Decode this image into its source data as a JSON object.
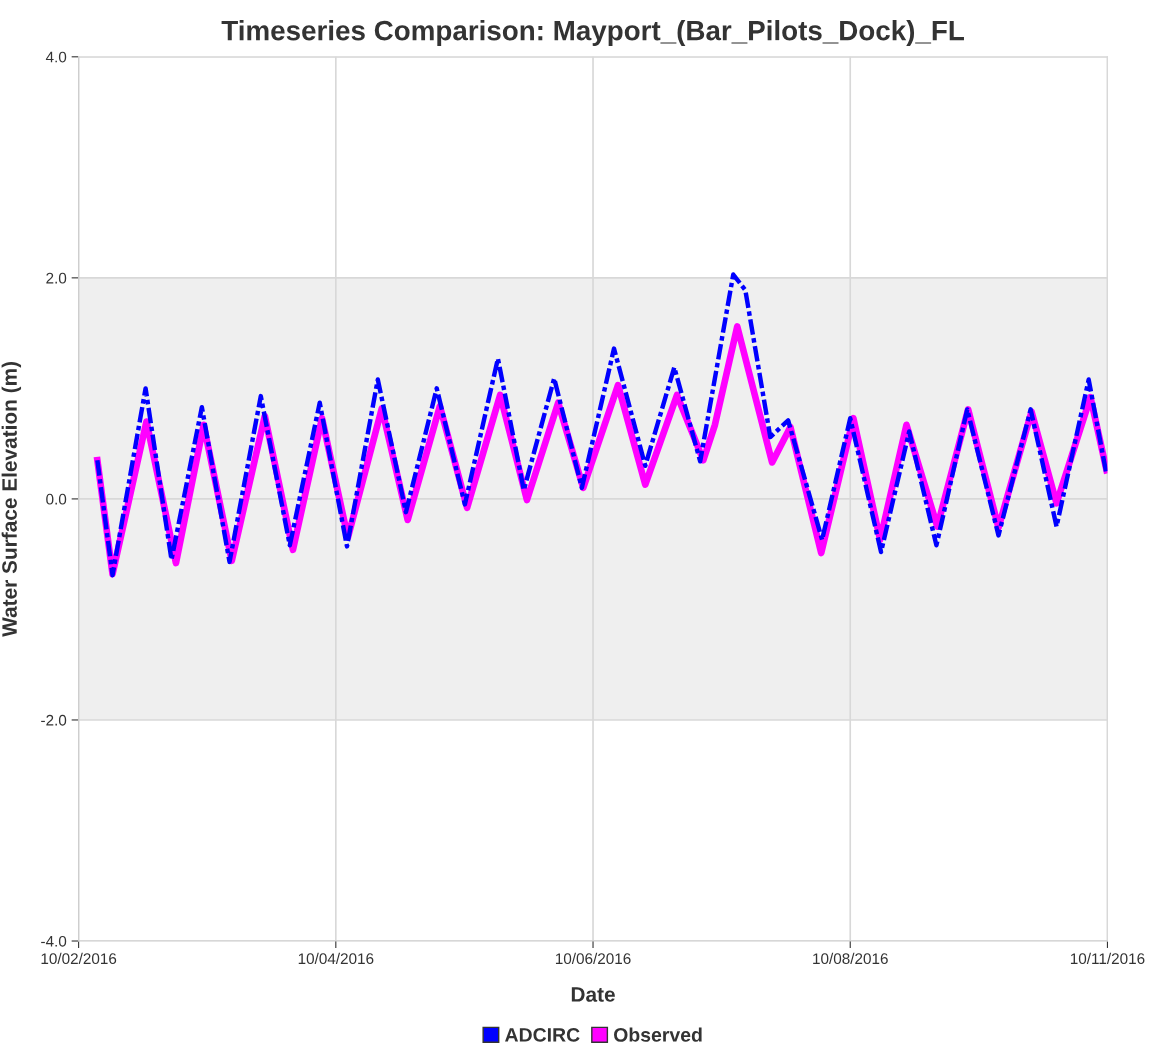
{
  "chart_data": {
    "type": "line",
    "title": "Timeseries Comparison: Mayport_(Bar_Pilots_Dock)_FL",
    "xlabel": "Date",
    "ylabel": "Water Surface Elevation (m)",
    "xlim": [
      "2016-10-02",
      "2016-10-10"
    ],
    "xticks": [
      {
        "value": "2016-10-02",
        "label": "10/02/2016"
      },
      {
        "value": "2016-10-04",
        "label": "10/04/2016"
      },
      {
        "value": "2016-10-06",
        "label": "10/06/2016"
      },
      {
        "value": "2016-10-08",
        "label": "10/08/2016"
      },
      {
        "value": "2016-10-10",
        "label": "10/11/2016"
      }
    ],
    "ylim": [
      -4,
      4
    ],
    "yticks": [
      {
        "value": -4,
        "label": "-4.0"
      },
      {
        "value": -2,
        "label": "-2.0"
      },
      {
        "value": 0,
        "label": "0.0"
      },
      {
        "value": 2,
        "label": "2.0"
      },
      {
        "value": 4,
        "label": "4.0"
      }
    ],
    "bands": [
      {
        "axis": "y",
        "from": -2,
        "to": 2,
        "color": "#efefef"
      }
    ],
    "grid": true,
    "legend": "bottom",
    "marker": "none",
    "series": [
      {
        "name": "ADCIRC",
        "color": "#0000ff",
        "line_style": "dashed",
        "x": [
          "2016-10-02T03:30",
          "2016-10-02T06:20",
          "2016-10-02T12:30",
          "2016-10-02T17:20",
          "2016-10-02T23:00",
          "2016-10-03T04:10",
          "2016-10-03T10:00",
          "2016-10-03T15:25",
          "2016-10-03T21:00",
          "2016-10-04T02:05",
          "2016-10-04T07:50",
          "2016-10-04T13:05",
          "2016-10-04T18:50",
          "2016-10-05T00:05",
          "2016-10-05T06:15",
          "2016-10-05T11:05",
          "2016-10-05T16:45",
          "2016-10-05T21:55",
          "2016-10-06T03:55",
          "2016-10-06T09:45",
          "2016-10-06T15:10",
          "2016-10-06T20:00",
          "2016-10-07T02:10",
          "2016-10-07T04:25",
          "2016-10-07T09:05",
          "2016-10-07T12:25",
          "2016-10-07T18:45",
          "2016-10-08T00:00",
          "2016-10-08T05:45",
          "2016-10-08T11:00",
          "2016-10-08T16:05",
          "2016-10-08T21:50",
          "2016-10-09T03:40",
          "2016-10-09T09:40",
          "2016-10-09T14:30",
          "2016-10-09T20:30",
          "2016-10-09T23:50"
        ],
        "values": [
          0.35,
          -0.69,
          1.0,
          -0.55,
          0.83,
          -0.57,
          0.93,
          -0.42,
          0.87,
          -0.43,
          1.08,
          -0.12,
          1.0,
          -0.05,
          1.27,
          0.08,
          1.09,
          0.1,
          1.36,
          0.3,
          1.19,
          0.34,
          2.03,
          1.89,
          0.56,
          0.71,
          -0.37,
          0.73,
          -0.48,
          0.61,
          -0.42,
          0.81,
          -0.33,
          0.81,
          -0.25,
          1.08,
          0.22
        ]
      },
      {
        "name": "Observed",
        "color": "#ff00ff",
        "line_style": "solid",
        "x": [
          "2016-10-02T03:30",
          "2016-10-02T06:20",
          "2016-10-02T12:40",
          "2016-10-02T18:10",
          "2016-10-02T23:20",
          "2016-10-03T04:35",
          "2016-10-03T10:45",
          "2016-10-03T16:00",
          "2016-10-03T21:25",
          "2016-10-04T02:15",
          "2016-10-04T08:35",
          "2016-10-04T13:25",
          "2016-10-04T19:25",
          "2016-10-05T00:30",
          "2016-10-05T06:40",
          "2016-10-05T11:40",
          "2016-10-05T17:30",
          "2016-10-05T22:10",
          "2016-10-06T04:40",
          "2016-10-06T09:45",
          "2016-10-06T15:40",
          "2016-10-06T20:35",
          "2016-10-06T22:45",
          "2016-10-07T02:55",
          "2016-10-07T09:25",
          "2016-10-07T12:50",
          "2016-10-07T18:35",
          "2016-10-08T00:35",
          "2016-10-08T05:35",
          "2016-10-08T10:30",
          "2016-10-08T16:15",
          "2016-10-08T22:00",
          "2016-10-09T03:40",
          "2016-10-09T09:50",
          "2016-10-09T14:30",
          "2016-10-09T20:50",
          "2016-10-09T23:50"
        ],
        "values": [
          0.35,
          -0.68,
          0.7,
          -0.58,
          0.67,
          -0.56,
          0.75,
          -0.46,
          0.73,
          -0.35,
          0.82,
          -0.19,
          0.84,
          -0.08,
          0.94,
          -0.01,
          0.87,
          0.1,
          1.03,
          0.13,
          0.94,
          0.35,
          0.67,
          1.56,
          0.33,
          0.65,
          -0.49,
          0.73,
          -0.37,
          0.67,
          -0.25,
          0.81,
          -0.26,
          0.79,
          -0.04,
          0.92,
          0.26
        ]
      }
    ]
  }
}
